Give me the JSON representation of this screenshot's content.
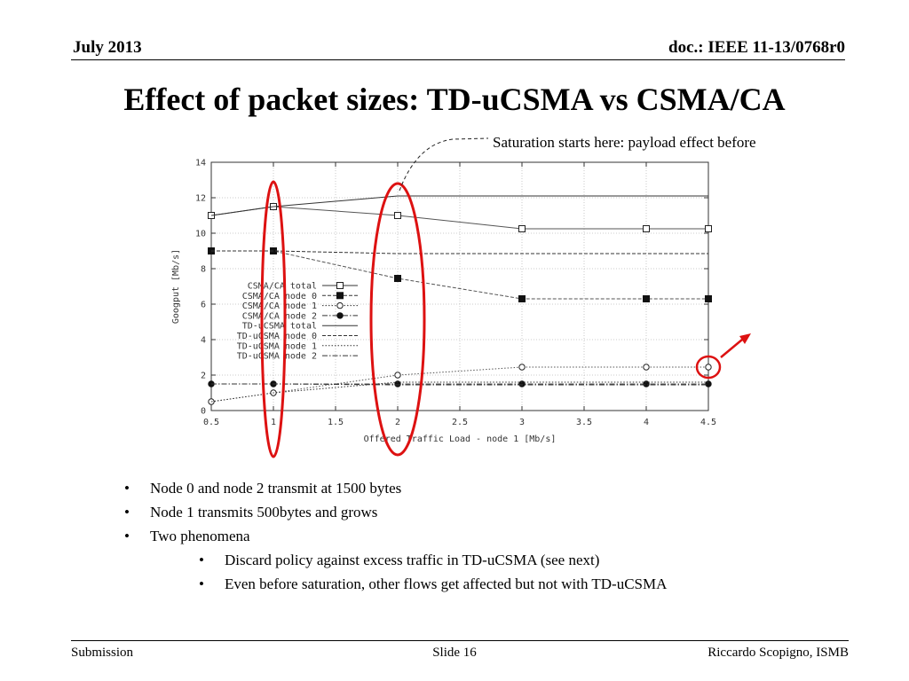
{
  "header": {
    "date": "July 2013",
    "doc_id": "doc.: IEEE 11-13/0768r0"
  },
  "slide": {
    "title": "Effect of packet sizes: TD-uCSMA vs CSMA/CA",
    "annotation": "Saturation starts here: payload effect before"
  },
  "chart_data": {
    "type": "line",
    "xlabel": "Offered Traffic Load - node 1 [Mb/s]",
    "ylabel": "Googput [Mb/s]",
    "xlim": [
      0.5,
      4.5
    ],
    "ylim": [
      0,
      14
    ],
    "x_ticks": [
      "0.5",
      "1",
      "1.5",
      "2",
      "2.5",
      "3",
      "3.5",
      "4",
      "4.5"
    ],
    "y_ticks": [
      "0",
      "2",
      "4",
      "6",
      "8",
      "10",
      "12",
      "14"
    ],
    "grid": true,
    "legend_position": "center-left",
    "x": [
      0.5,
      1,
      2,
      3,
      4,
      4.5
    ],
    "series": [
      {
        "name": "CSMA/CA total",
        "style": "solid",
        "marker": "open-square",
        "values": [
          11.0,
          11.5,
          11.0,
          10.25,
          10.25,
          10.25
        ]
      },
      {
        "name": "CSMA/CA node 0",
        "style": "dashed",
        "marker": "filled-square",
        "values": [
          9.0,
          9.0,
          7.45,
          6.3,
          6.3,
          6.3
        ]
      },
      {
        "name": "CSMA/CA node 1",
        "style": "dotted",
        "marker": "open-circle",
        "values": [
          0.5,
          1.0,
          2.0,
          2.45,
          2.45,
          2.45
        ]
      },
      {
        "name": "CSMA/CA node 2",
        "style": "dashdot",
        "marker": "filled-circle",
        "values": [
          1.5,
          1.5,
          1.5,
          1.5,
          1.5,
          1.5
        ]
      },
      {
        "name": "TD-uCSMA total",
        "style": "solid",
        "marker": "none",
        "values": [
          11.0,
          11.5,
          12.1,
          12.1,
          12.1,
          12.1
        ]
      },
      {
        "name": "TD-uCSMA node 0",
        "style": "dashed",
        "marker": "none",
        "values": [
          9.0,
          9.0,
          8.85,
          8.85,
          8.85,
          8.85
        ]
      },
      {
        "name": "TD-uCSMA node 1",
        "style": "dotted",
        "marker": "none",
        "values": [
          0.5,
          1.0,
          1.6,
          1.6,
          1.6,
          1.6
        ]
      },
      {
        "name": "TD-uCSMA node 2",
        "style": "dashdot",
        "marker": "none",
        "values": [
          1.5,
          1.5,
          1.45,
          1.45,
          1.45,
          1.45
        ]
      }
    ]
  },
  "highlight_color": "#dd1111",
  "bullets": [
    {
      "text": "Node 0 and node 2 transmit at 1500 bytes",
      "level": 1
    },
    {
      "text": "Node 1 transmits 500bytes and grows",
      "level": 1
    },
    {
      "text": "Two phenomena",
      "level": 1
    },
    {
      "text": "Discard policy against excess traffic in TD-uCSMA (see next)",
      "level": 2
    },
    {
      "text": "Even before saturation, other flows get affected but not with TD-uCSMA",
      "level": 2
    }
  ],
  "bullet_glyph": "•",
  "footer": {
    "left": "Submission",
    "center": "Slide 16",
    "right": "Riccardo Scopigno, ISMB"
  }
}
